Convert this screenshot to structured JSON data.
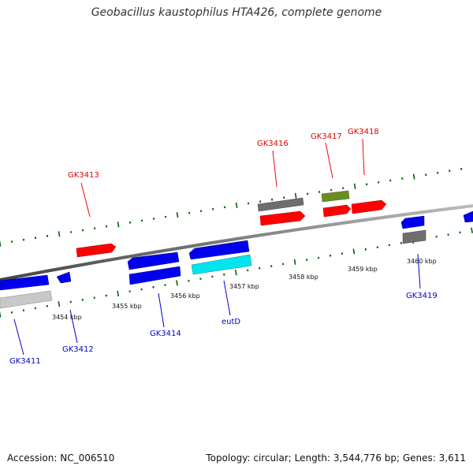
{
  "title": "Geobacillus kaustophilus HTA426, complete genome",
  "footer": {
    "accession": "Accession: NC_006510",
    "topology": "Topology: circular; Length: 3,544,776 bp; Genes: 3,611"
  },
  "colors": {
    "red": "#ff0000",
    "blue": "#0000ee",
    "gray": "#777777",
    "olive": "#6b8e23",
    "cyan": "#00e5ee",
    "lightgray": "#c8c8c8",
    "tick": "#006400",
    "backbone": "#888888",
    "label_red": "#dd0000",
    "label_blue": "#0000cc"
  },
  "kbp_labels": [
    "3454 kbp",
    "3455 kbp",
    "3456 kbp",
    "3457 kbp",
    "3458 kbp",
    "3459 kbp",
    "3460 kbp"
  ],
  "gene_labels": {
    "top": [
      "GK3413",
      "GK3416",
      "GK3417",
      "GK3418"
    ],
    "bottom": [
      "GK3411",
      "GK3412",
      "GK3414",
      "eutD",
      "GK3419"
    ]
  }
}
